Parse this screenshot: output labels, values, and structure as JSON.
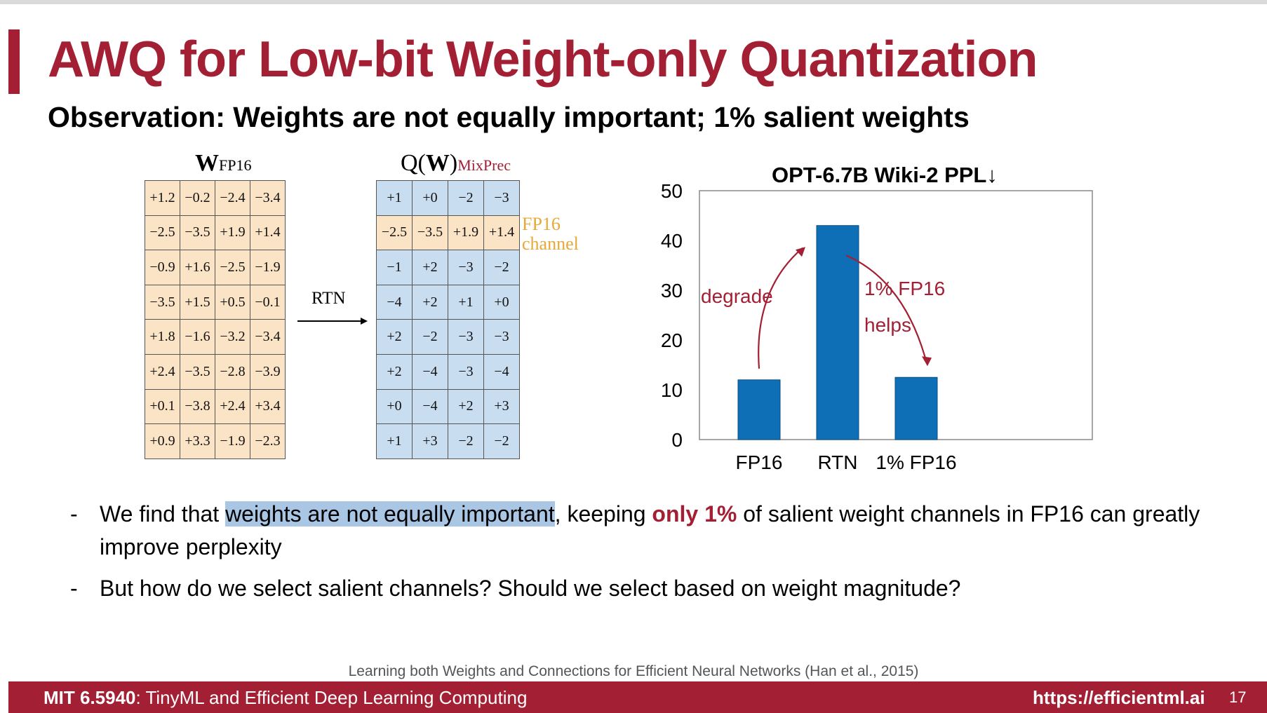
{
  "colors": {
    "accent": "#a31f34",
    "bar": "#0f6fb6",
    "fp16_fill": "#fbe3c5",
    "int_fill": "#c9ddf0",
    "fp16_label": "#e8a838",
    "highlight": "#a9c6e4"
  },
  "slide": {
    "title": "AWQ for Low-bit Weight-only Quantization",
    "subtitle": "Observation: Weights are not equally important; 1% salient weights"
  },
  "left_matrix": {
    "head_main": "W",
    "head_sub": "FP16",
    "rows": [
      [
        "+1.2",
        "−0.2",
        "−2.4",
        "−3.4"
      ],
      [
        "−2.5",
        "−3.5",
        "+1.9",
        "+1.4"
      ],
      [
        "−0.9",
        "+1.6",
        "−2.5",
        "−1.9"
      ],
      [
        "−3.5",
        "+1.5",
        "+0.5",
        "−0.1"
      ],
      [
        "+1.8",
        "−1.6",
        "−3.2",
        "−3.4"
      ],
      [
        "+2.4",
        "−3.5",
        "−2.8",
        "−3.9"
      ],
      [
        "+0.1",
        "−3.8",
        "+2.4",
        "+3.4"
      ],
      [
        "+0.9",
        "+3.3",
        "−1.9",
        "−2.3"
      ]
    ]
  },
  "arrow_label": "RTN",
  "right_matrix": {
    "head_open": "Q(",
    "head_main": "W",
    "head_close": ")",
    "head_sub": "MixPrec",
    "fp16_row_index": 1,
    "fp16_label_line1": "FP16",
    "fp16_label_line2": "channel",
    "rows": [
      [
        "+1",
        "+0",
        "−2",
        "−3"
      ],
      [
        "−2.5",
        "−3.5",
        "+1.9",
        "+1.4"
      ],
      [
        "−1",
        "+2",
        "−3",
        "−2"
      ],
      [
        "−4",
        "+2",
        "+1",
        "+0"
      ],
      [
        "+2",
        "−2",
        "−3",
        "−3"
      ],
      [
        "+2",
        "−4",
        "−3",
        "−4"
      ],
      [
        "+0",
        "−4",
        "+2",
        "+3"
      ],
      [
        "+1",
        "+3",
        "−2",
        "−2"
      ]
    ]
  },
  "chart_data": {
    "type": "bar",
    "title": "OPT-6.7B Wiki-2 PPL↓",
    "categories": [
      "FP16",
      "RTN",
      "1% FP16"
    ],
    "values": [
      12,
      43,
      12.5
    ],
    "ylim": [
      0,
      50
    ],
    "yticks": [
      "0",
      "10",
      "20",
      "30",
      "40",
      "50"
    ],
    "grid": false,
    "annotations": {
      "degrade": "degrade",
      "helps_line1": "1% FP16",
      "helps_line2": "helps"
    }
  },
  "bullets": {
    "b1_pre": "We find that ",
    "b1_hl": "weights are not equally important",
    "b1_mid": ", keeping ",
    "b1_emph": "only 1%",
    "b1_post": " of salient weight channels in FP16 can greatly improve perplexity",
    "b2": "But how do we select salient channels? Should we select based on weight magnitude?"
  },
  "citation": "Learning both Weights and Connections for Efficient Neural Networks (Han et al., 2015)",
  "footer": {
    "course_code": "MIT 6.5940",
    "course_rest": ": TinyML and Efficient Deep Learning Computing",
    "url": "https://efficientml.ai",
    "page": "17"
  }
}
